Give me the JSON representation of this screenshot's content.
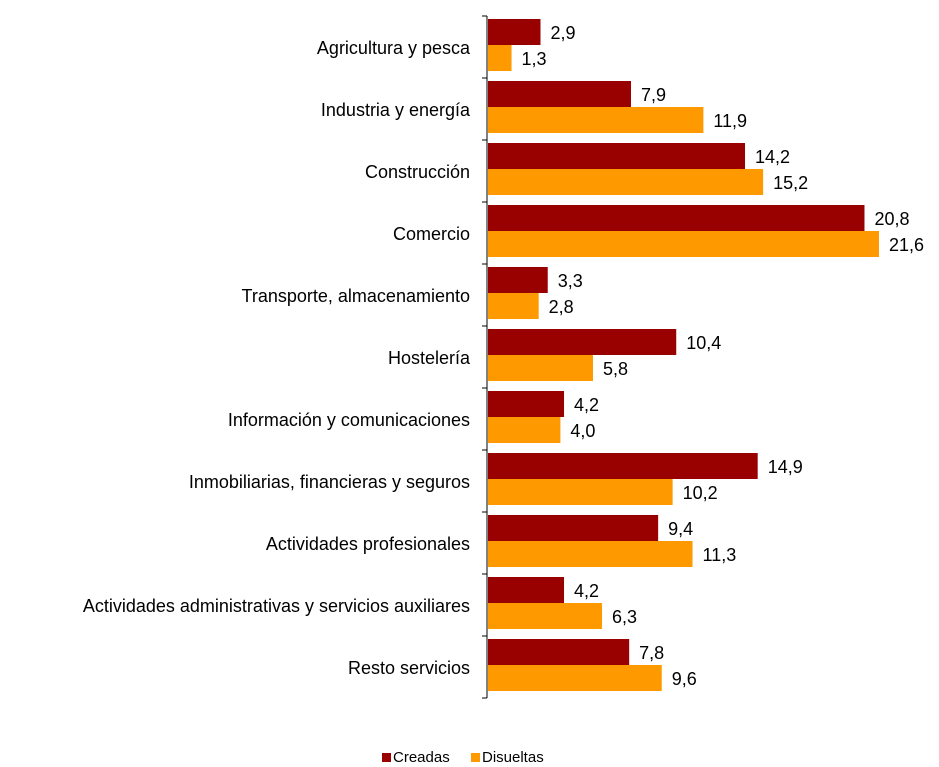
{
  "chart_data": {
    "type": "bar",
    "orientation": "horizontal",
    "categories": [
      "Agricultura y pesca",
      "Industria y energía",
      "Construcción",
      "Comercio",
      "Transporte, almacenamiento",
      "Hostelería",
      "Información y comunicaciones",
      "Inmobiliarias, financieras y seguros",
      "Actividades profesionales",
      "Actividades administrativas y servicios auxiliares",
      "Resto servicios"
    ],
    "series": [
      {
        "name": "Creadas",
        "color": "#990000",
        "values": [
          2.9,
          7.9,
          14.2,
          20.8,
          3.3,
          10.4,
          4.2,
          14.9,
          9.4,
          4.2,
          7.8
        ],
        "labels": [
          "2,9",
          "7,9",
          "14,2",
          "20,8",
          "3,3",
          "10,4",
          "4,2",
          "14,9",
          "9,4",
          "4,2",
          "7,8"
        ]
      },
      {
        "name": "Disueltas",
        "color": "#FF9900",
        "values": [
          1.3,
          11.9,
          15.2,
          21.6,
          2.8,
          5.8,
          4.0,
          10.2,
          11.3,
          6.3,
          9.6
        ],
        "labels": [
          "1,3",
          "11,9",
          "15,2",
          "21,6",
          "2,8",
          "5,8",
          "4,0",
          "10,2",
          "11,3",
          "6,3",
          "9,6"
        ]
      }
    ],
    "title": "",
    "xlabel": "",
    "ylabel": "",
    "xlim": [
      0,
      24
    ],
    "grid": false,
    "legend_position": "bottom"
  }
}
